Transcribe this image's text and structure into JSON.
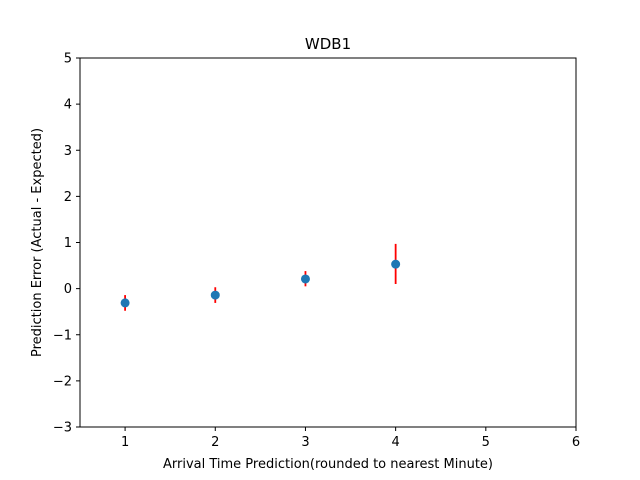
{
  "chart_data": {
    "type": "scatter",
    "title": "WDB1",
    "xlabel": "Arrival Time Prediction(rounded to nearest Minute)",
    "ylabel": "Prediction Error (Actual - Expected)",
    "xlim": [
      0.5,
      6
    ],
    "ylim": [
      -3,
      5
    ],
    "xticks": [
      1,
      2,
      3,
      4,
      5,
      6
    ],
    "yticks": [
      -3,
      -2,
      -1,
      0,
      1,
      2,
      3,
      4,
      5
    ],
    "ytick_labels": [
      "−3",
      "−2",
      "−1",
      "0",
      "1",
      "2",
      "3",
      "4",
      "5"
    ],
    "grid": false,
    "points": [
      {
        "x": 1,
        "y": -0.31,
        "err_low": -0.48,
        "err_high": -0.14
      },
      {
        "x": 2,
        "y": -0.14,
        "err_low": -0.31,
        "err_high": 0.03
      },
      {
        "x": 3,
        "y": 0.21,
        "err_low": 0.05,
        "err_high": 0.38
      },
      {
        "x": 4,
        "y": 0.53,
        "err_low": 0.1,
        "err_high": 0.97
      }
    ],
    "marker_color": "#1f77b4",
    "errorbar_color": "#ff0000"
  }
}
